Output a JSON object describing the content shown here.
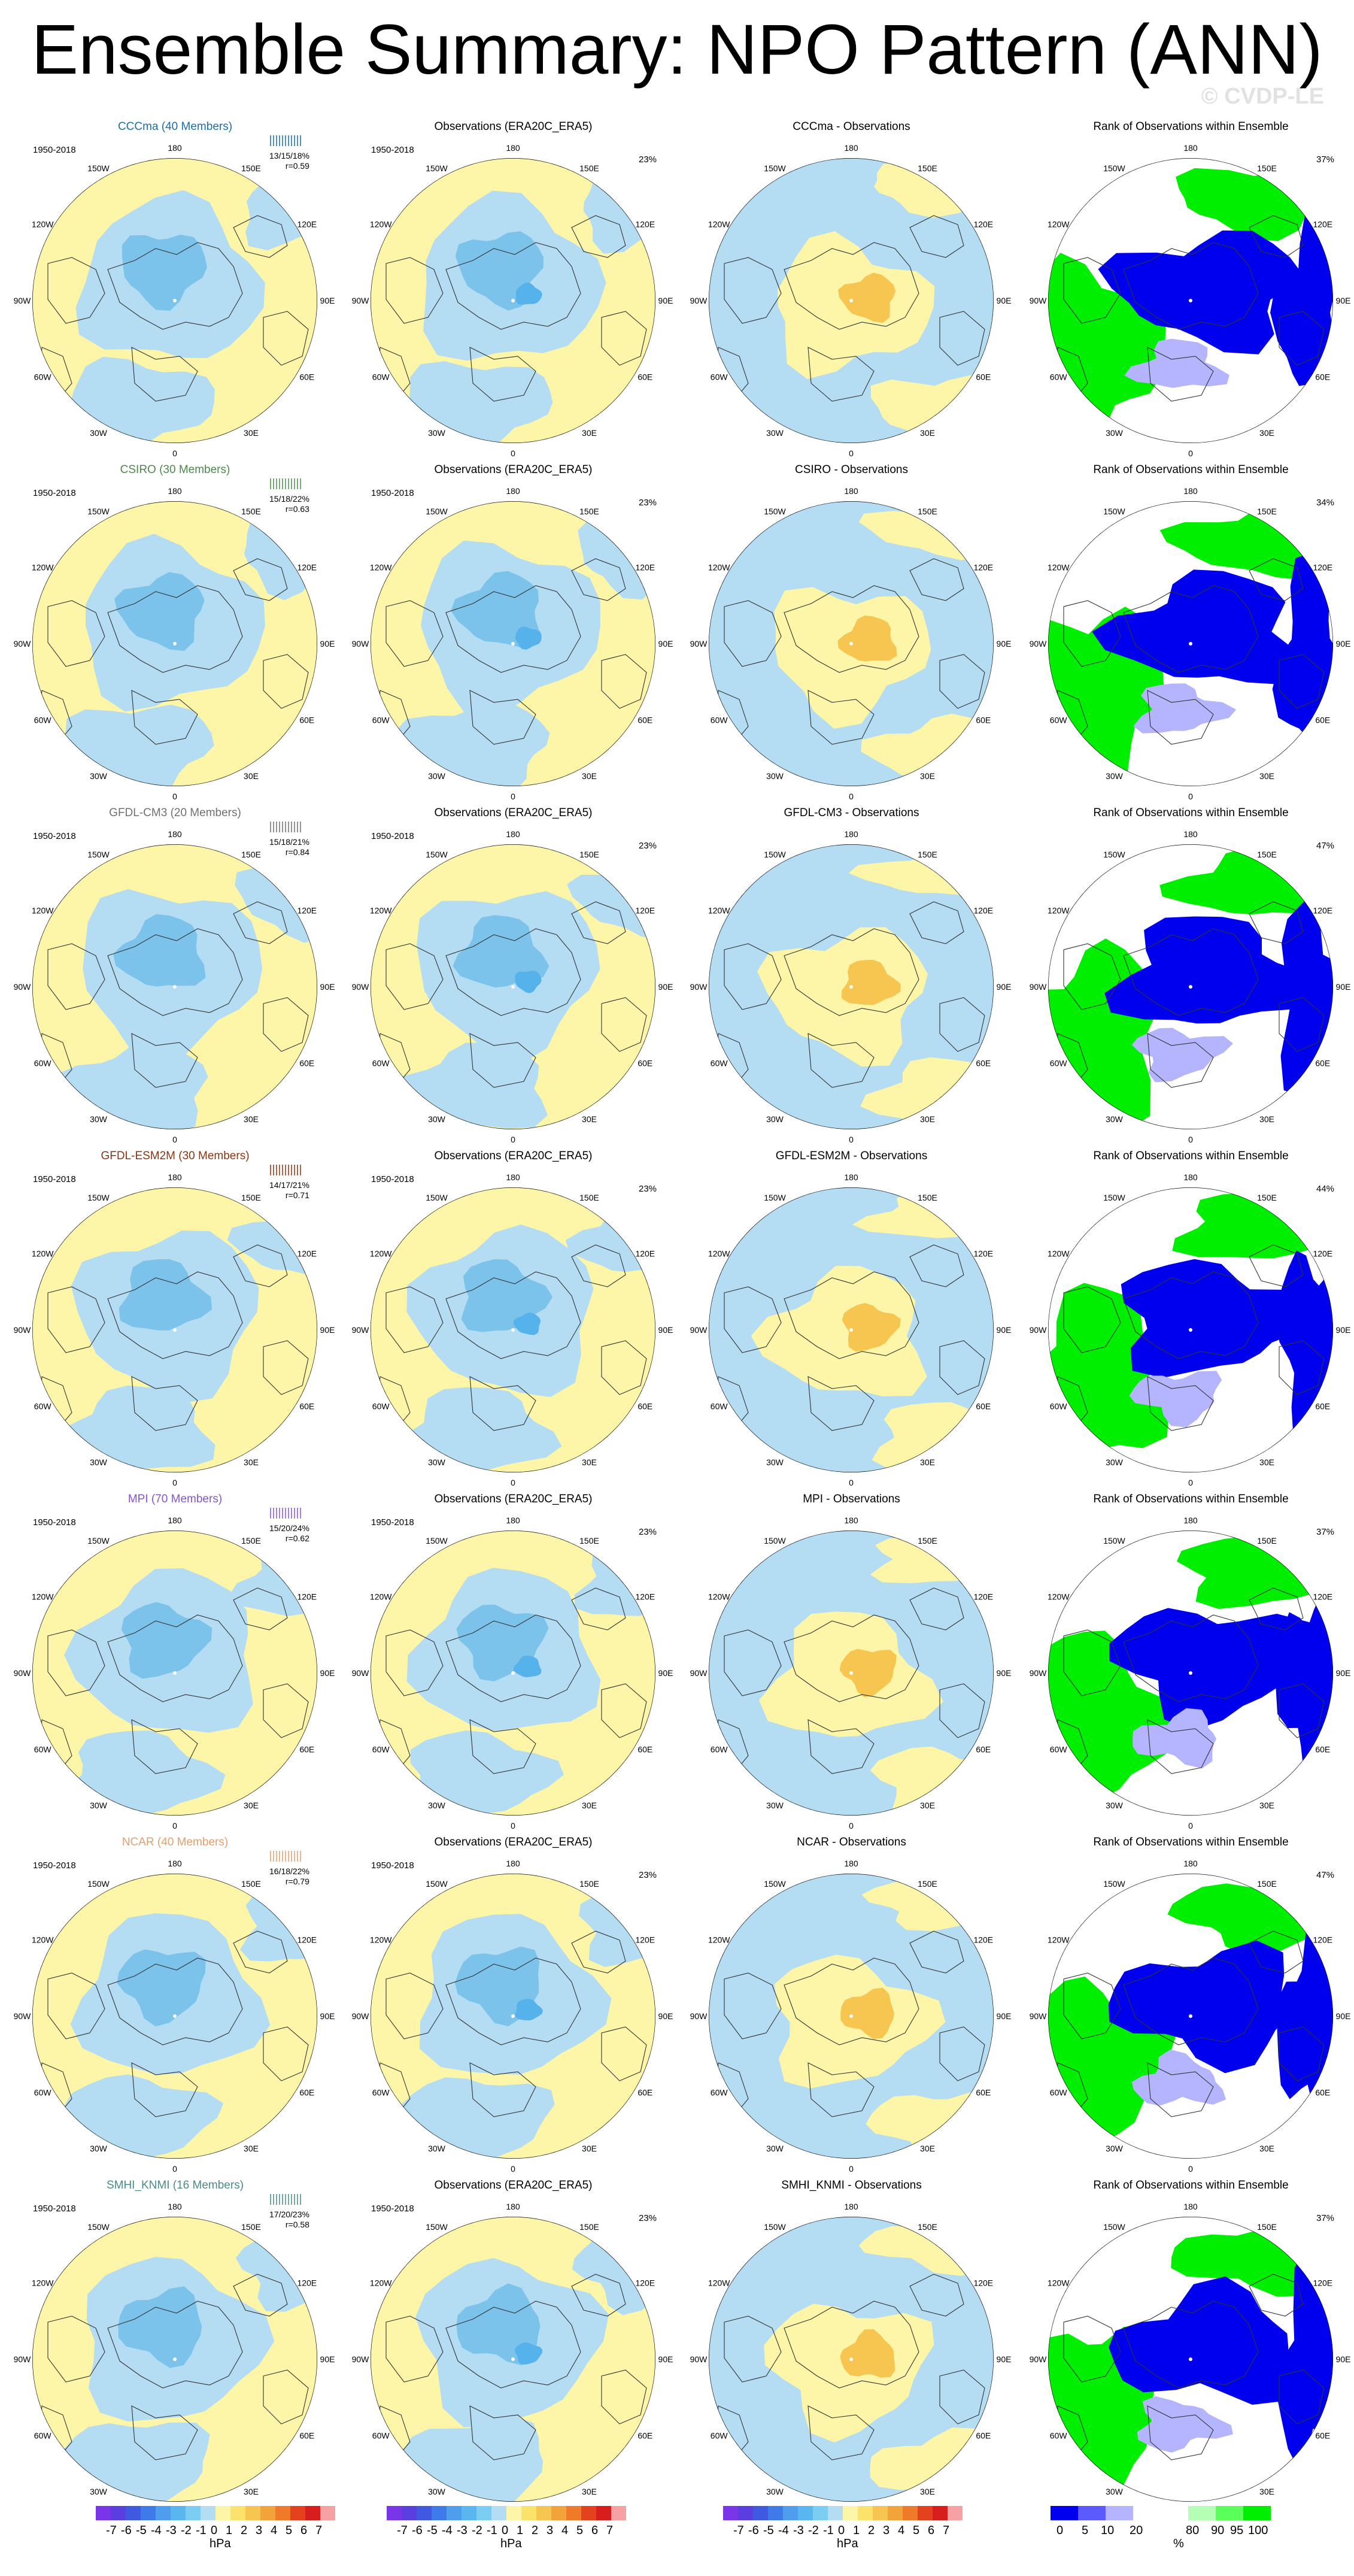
{
  "title": "Ensemble Summary: NPO Pattern (ANN)",
  "watermark": "© CVDP-LE",
  "years": "1950-2018",
  "obs_title": "Observations (ERA20C_ERA5)",
  "obs_pct": "23%",
  "rank_title": "Rank of Observations within Ensemble",
  "lon_labels": [
    "180",
    "150E",
    "120E",
    "90E",
    "60E",
    "30E",
    "0",
    "30W",
    "60W",
    "90W",
    "120W",
    "150W"
  ],
  "colors": {
    "pos_fill": "#fdf6a8",
    "neg_fill": "#b4dcf2",
    "neg_core": "#7cc3ec",
    "neg_strong": "#56b2ea",
    "pos_core": "#f7c650",
    "rank_low": "#0000ee",
    "rank_mid": "#b4b4ff",
    "rank_high": "#00ee00",
    "coast": "#333333"
  },
  "rows": [
    {
      "model": "CCCma (40 Members)",
      "color": "#1b6ea8",
      "stats": "13/15/18%",
      "r": "r=0.59",
      "diff_title": "CCCma - Observations",
      "rank_pct": "37%"
    },
    {
      "model": "CSIRO (30 Members)",
      "color": "#4c8a4c",
      "stats": "15/18/22%",
      "r": "r=0.63",
      "diff_title": "CSIRO - Observations",
      "rank_pct": "34%"
    },
    {
      "model": "GFDL-CM3 (20 Members)",
      "color": "#707070",
      "stats": "15/18/21%",
      "r": "r=0.84",
      "diff_title": "GFDL-CM3 - Observations",
      "rank_pct": "47%"
    },
    {
      "model": "GFDL-ESM2M (30 Members)",
      "color": "#8a3512",
      "stats": "14/17/21%",
      "r": "r=0.71",
      "diff_title": "GFDL-ESM2M - Observations",
      "rank_pct": "44%"
    },
    {
      "model": "MPI (70 Members)",
      "color": "#8555d0",
      "stats": "15/20/24%",
      "r": "r=0.62",
      "diff_title": "MPI - Observations",
      "rank_pct": "37%"
    },
    {
      "model": "NCAR (40 Members)",
      "color": "#e0a070",
      "stats": "16/18/22%",
      "r": "r=0.79",
      "diff_title": "NCAR - Observations",
      "rank_pct": "47%"
    },
    {
      "model": "SMHI_KNMI (16 Members)",
      "color": "#4a8c8c",
      "stats": "17/20/23%",
      "r": "r=0.58",
      "diff_title": "SMHI_KNMI - Observations",
      "rank_pct": "37%"
    }
  ],
  "colorbar_hpa": {
    "labels": [
      "-7",
      "-6",
      "-5",
      "-4",
      "-3",
      "-2",
      "-1",
      "0",
      "1",
      "2",
      "3",
      "4",
      "5",
      "6",
      "7"
    ],
    "unit": "hPa",
    "colors": [
      "#7a35e8",
      "#5a3ee0",
      "#3f5ae0",
      "#3e7ae8",
      "#4f9ded",
      "#5ab6ee",
      "#7ccdf2",
      "#b4dcf2",
      "#fdf6a8",
      "#fbe26a",
      "#f7c650",
      "#f2a33a",
      "#ef7a2a",
      "#e4411e",
      "#d81d1d",
      "#f6a2a2"
    ]
  },
  "colorbar_rank": {
    "labels": [
      "0",
      "5",
      "10",
      "20",
      "80",
      "90",
      "95",
      "100"
    ],
    "unit": "%",
    "colors": [
      "#0000ee",
      "#5a5aff",
      "#b4b4ff",
      "#ffffff",
      "#ffffff",
      "#b4ffb4",
      "#5aff5a",
      "#00ee00"
    ]
  }
}
